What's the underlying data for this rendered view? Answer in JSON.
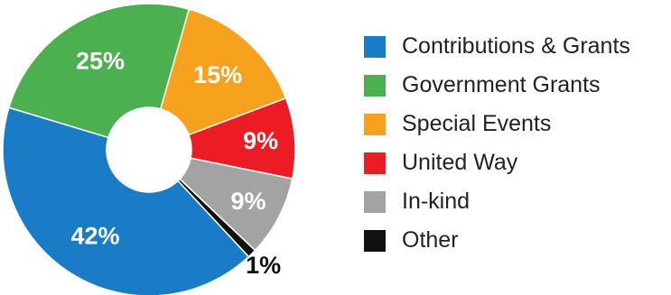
{
  "chart_data": {
    "type": "pie",
    "donut": true,
    "title": "",
    "categories": [
      "Contributions & Grants",
      "Government Grants",
      "Special Events",
      "United Way",
      "In-kind",
      "Other"
    ],
    "values": [
      42,
      25,
      15,
      9,
      9,
      1
    ],
    "labels": [
      "42%",
      "25%",
      "15%",
      "9%",
      "9%",
      "1%"
    ],
    "colors": [
      "#1a7bc6",
      "#4caf50",
      "#f6a21e",
      "#ec1c24",
      "#a3a3a3",
      "#111111"
    ],
    "legend_position": "right"
  }
}
